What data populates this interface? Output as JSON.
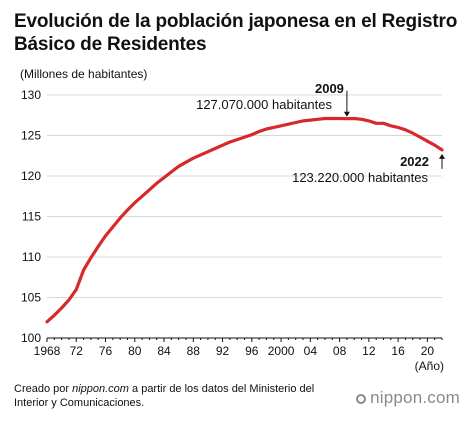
{
  "header": {
    "title_line1": "Evolución de la población japonesa en el Registro",
    "title_line2": "Básico de Residentes"
  },
  "footer": {
    "source_prefix": "Creado por ",
    "source_site": "nippon.com",
    "source_rest": " a partir de los datos del Ministerio del Interior y Comunicaciones.",
    "logo_text": "nippon.com"
  },
  "colors": {
    "line": "#d62a2a",
    "grid": "#d8d8d8",
    "axis": "#111111"
  },
  "chart_data": {
    "type": "line",
    "title": "Evolución de la población japonesa en el Registro Básico de Residentes",
    "ylabel": "(Millones de habitantes)",
    "xlabel": "(Año)",
    "xlim": [
      1968,
      2022
    ],
    "ylim": [
      100,
      130
    ],
    "y_ticks": [
      100,
      105,
      110,
      115,
      120,
      125,
      130
    ],
    "x_ticks": [
      {
        "value": 1968,
        "label": "1968"
      },
      {
        "value": 1972,
        "label": "72"
      },
      {
        "value": 1976,
        "label": "76"
      },
      {
        "value": 1980,
        "label": "80"
      },
      {
        "value": 1984,
        "label": "84"
      },
      {
        "value": 1988,
        "label": "88"
      },
      {
        "value": 1992,
        "label": "92"
      },
      {
        "value": 1996,
        "label": "96"
      },
      {
        "value": 2000,
        "label": "2000"
      },
      {
        "value": 2004,
        "label": "04"
      },
      {
        "value": 2008,
        "label": "08"
      },
      {
        "value": 2012,
        "label": "12"
      },
      {
        "value": 2016,
        "label": "16"
      },
      {
        "value": 2020,
        "label": "20"
      }
    ],
    "grid": true,
    "series": [
      {
        "x": [
          1968,
          1969,
          1970,
          1971,
          1972,
          1973,
          1974,
          1975,
          1976,
          1977,
          1978,
          1979,
          1980,
          1981,
          1982,
          1983,
          1984,
          1985,
          1986,
          1987,
          1988,
          1989,
          1990,
          1991,
          1992,
          1993,
          1994,
          1995,
          1996,
          1997,
          1998,
          1999,
          2000,
          2001,
          2002,
          2003,
          2004,
          2005,
          2006,
          2007,
          2008,
          2009,
          2010,
          2011,
          2012,
          2013,
          2014,
          2015,
          2016,
          2017,
          2018,
          2019,
          2020,
          2021,
          2022
        ],
        "y": [
          102.0,
          102.8,
          103.7,
          104.7,
          106.0,
          108.4,
          109.9,
          111.3,
          112.6,
          113.7,
          114.8,
          115.8,
          116.7,
          117.5,
          118.3,
          119.1,
          119.8,
          120.5,
          121.2,
          121.7,
          122.2,
          122.6,
          123.0,
          123.4,
          123.8,
          124.2,
          124.5,
          124.8,
          125.1,
          125.5,
          125.8,
          126.0,
          126.2,
          126.4,
          126.6,
          126.8,
          126.9,
          127.0,
          127.1,
          127.1,
          127.1,
          127.07,
          127.1,
          127.0,
          126.8,
          126.5,
          126.5,
          126.2,
          126.0,
          125.7,
          125.3,
          124.8,
          124.3,
          123.8,
          123.22
        ]
      }
    ],
    "annotations": [
      {
        "year_label": "2009",
        "value_label": "127.070.000 habitantes",
        "x": 2009,
        "y": 127.07
      },
      {
        "year_label": "2022",
        "value_label": "123.220.000 habitantes",
        "x": 2022,
        "y": 123.22
      }
    ]
  }
}
